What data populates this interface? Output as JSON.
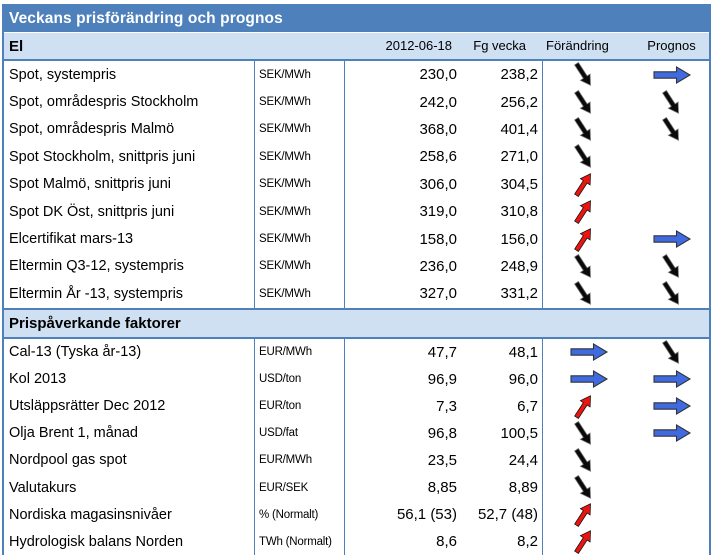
{
  "title": "Veckans prisförändring och prognos",
  "columns": {
    "date": "2012-06-18",
    "prev_week": "Fg vecka",
    "change": "Förändring",
    "forecast": "Prognos"
  },
  "colors": {
    "title_bar": "#4e80bc",
    "section_band": "#cfe0f2",
    "table_border": "#4e80bc",
    "arrow_down": "#0a0a0a",
    "arrow_up": "#ea1510",
    "arrow_flat": "#3f6ae0"
  },
  "sections": [
    {
      "header": "El",
      "rows": [
        {
          "label": "Spot, systempris",
          "unit": "SEK/MWh",
          "current": "230,0",
          "prev": "238,2",
          "change": "down",
          "forecast": "flat"
        },
        {
          "label": "Spot, områdespris Stockholm",
          "unit": "SEK/MWh",
          "current": "242,0",
          "prev": "256,2",
          "change": "down",
          "forecast": "down"
        },
        {
          "label": "Spot, områdespris Malmö",
          "unit": "SEK/MWh",
          "current": "368,0",
          "prev": "401,4",
          "change": "down",
          "forecast": "down"
        },
        {
          "label": "Spot Stockholm, snittpris juni",
          "unit": "SEK/MWh",
          "current": "258,6",
          "prev": "271,0",
          "change": "down",
          "forecast": null
        },
        {
          "label": "Spot Malmö, snittpris juni",
          "unit": "SEK/MWh",
          "current": "306,0",
          "prev": "304,5",
          "change": "up",
          "forecast": null
        },
        {
          "label": "Spot DK Öst, snittpris juni",
          "unit": "SEK/MWh",
          "current": "319,0",
          "prev": "310,8",
          "change": "up",
          "forecast": null
        },
        {
          "label": "Elcertifikat mars-13",
          "unit": "SEK/MWh",
          "current": "158,0",
          "prev": "156,0",
          "change": "up",
          "forecast": "flat"
        },
        {
          "label": "Eltermin Q3-12, systempris",
          "unit": "SEK/MWh",
          "current": "236,0",
          "prev": "248,9",
          "change": "down",
          "forecast": "down"
        },
        {
          "label": "Eltermin År -13, systempris",
          "unit": "SEK/MWh",
          "current": "327,0",
          "prev": "331,2",
          "change": "down",
          "forecast": "down"
        }
      ]
    },
    {
      "header": "Prispåverkande faktorer",
      "rows": [
        {
          "label": "Cal-13 (Tyska år-13)",
          "unit": "EUR/MWh",
          "current": "47,7",
          "prev": "48,1",
          "change": "flat",
          "forecast": "down"
        },
        {
          "label": "Kol 2013",
          "unit": "USD/ton",
          "current": "96,9",
          "prev": "96,0",
          "change": "flat",
          "forecast": "flat"
        },
        {
          "label": "Utsläppsrätter Dec 2012",
          "unit": "EUR/ton",
          "current": "7,3",
          "prev": "6,7",
          "change": "up",
          "forecast": "flat"
        },
        {
          "label": "Olja Brent 1, månad",
          "unit": "USD/fat",
          "current": "96,8",
          "prev": "100,5",
          "change": "down",
          "forecast": "flat"
        },
        {
          "label": "Nordpool gas spot",
          "unit": "EUR/MWh",
          "current": "23,5",
          "prev": "24,4",
          "change": "down",
          "forecast": null
        },
        {
          "label": "Valutakurs",
          "unit": "EUR/SEK",
          "current": "8,85",
          "prev": "8,89",
          "change": "down",
          "forecast": null
        },
        {
          "label": "Nordiska magasinsnivåer",
          "unit": "% (Normalt)",
          "current": "56,1 (53)",
          "prev": "52,7 (48)",
          "change": "up",
          "forecast": null
        },
        {
          "label": "Hydrologisk balans Norden",
          "unit": "TWh (Normalt)",
          "current": "8,6",
          "prev": "8,2",
          "change": "up",
          "forecast": null
        }
      ]
    }
  ]
}
